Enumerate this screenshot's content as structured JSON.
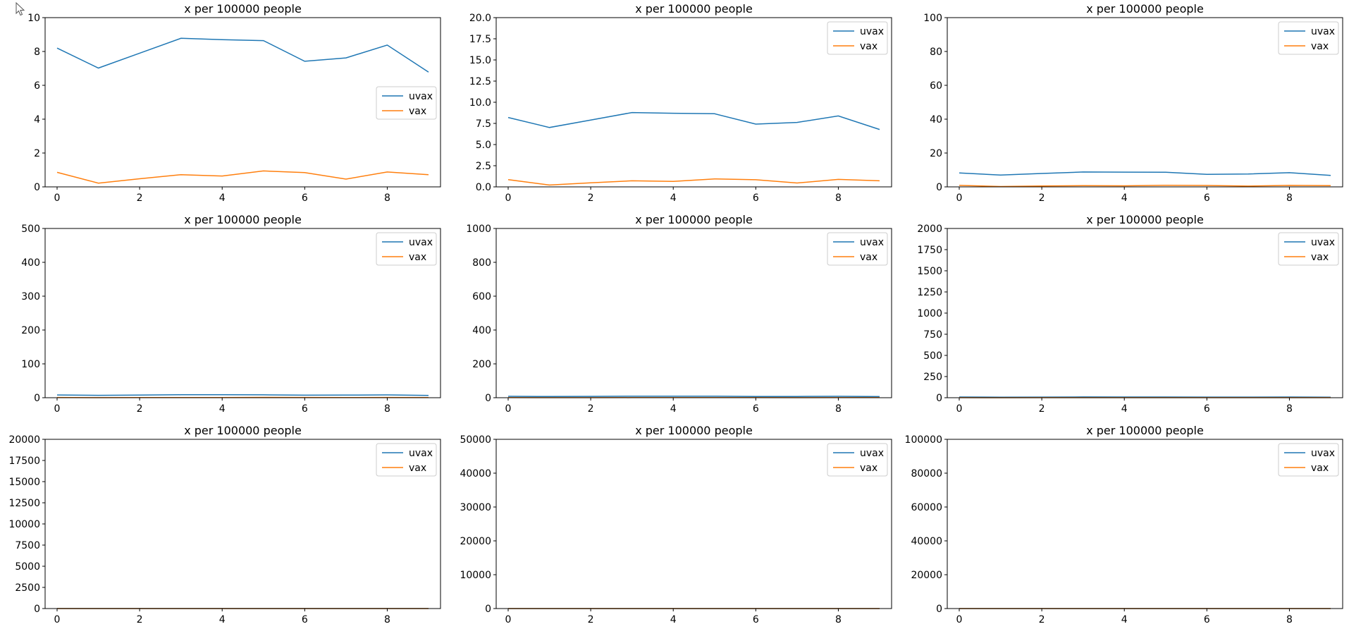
{
  "figure": {
    "colors": {
      "uvax": "#1f77b4",
      "vax": "#ff7f0e",
      "axes": "#000000",
      "legend_border": "#cccccc"
    }
  },
  "chart_data": [
    {
      "type": "line",
      "title": "x per 100000 people",
      "x": [
        0,
        1,
        2,
        3,
        4,
        5,
        6,
        7,
        8,
        9
      ],
      "ylim": [
        0,
        10
      ],
      "yticks": [
        0,
        2,
        4,
        6,
        8,
        10
      ],
      "ytick_labels": [
        "0",
        "2",
        "4",
        "6",
        "8",
        "10"
      ],
      "xticks": [
        0,
        2,
        4,
        6,
        8
      ],
      "xtick_labels": [
        "0",
        "2",
        "4",
        "6",
        "8"
      ],
      "legend": "center-right",
      "series": [
        {
          "name": "uvax",
          "values": [
            8.2,
            7.02,
            7.9,
            8.78,
            8.7,
            8.64,
            7.42,
            7.62,
            8.38,
            6.78
          ]
        },
        {
          "name": "vax",
          "values": [
            0.86,
            0.22,
            0.48,
            0.72,
            0.64,
            0.94,
            0.84,
            0.46,
            0.88,
            0.72
          ]
        }
      ]
    },
    {
      "type": "line",
      "title": "x per 100000 people",
      "x": [
        0,
        1,
        2,
        3,
        4,
        5,
        6,
        7,
        8,
        9
      ],
      "ylim": [
        0,
        20
      ],
      "yticks": [
        0,
        2.5,
        5,
        7.5,
        10,
        12.5,
        15,
        17.5,
        20
      ],
      "ytick_labels": [
        "0.0",
        "2.5",
        "5.0",
        "7.5",
        "10.0",
        "12.5",
        "15.0",
        "17.5",
        "20.0"
      ],
      "xticks": [
        0,
        2,
        4,
        6,
        8
      ],
      "xtick_labels": [
        "0",
        "2",
        "4",
        "6",
        "8"
      ],
      "legend": "top-right",
      "series": [
        {
          "name": "uvax",
          "values": [
            8.2,
            7.02,
            7.9,
            8.78,
            8.7,
            8.64,
            7.42,
            7.62,
            8.38,
            6.78
          ]
        },
        {
          "name": "vax",
          "values": [
            0.86,
            0.22,
            0.48,
            0.72,
            0.64,
            0.94,
            0.84,
            0.46,
            0.88,
            0.72
          ]
        }
      ]
    },
    {
      "type": "line",
      "title": "x per 100000 people",
      "x": [
        0,
        1,
        2,
        3,
        4,
        5,
        6,
        7,
        8,
        9
      ],
      "ylim": [
        0,
        100
      ],
      "yticks": [
        0,
        20,
        40,
        60,
        80,
        100
      ],
      "ytick_labels": [
        "0",
        "20",
        "40",
        "60",
        "80",
        "100"
      ],
      "xticks": [
        0,
        2,
        4,
        6,
        8
      ],
      "xtick_labels": [
        "0",
        "2",
        "4",
        "6",
        "8"
      ],
      "legend": "top-right",
      "series": [
        {
          "name": "uvax",
          "values": [
            8.2,
            7.02,
            7.9,
            8.78,
            8.7,
            8.64,
            7.42,
            7.62,
            8.38,
            6.78
          ]
        },
        {
          "name": "vax",
          "values": [
            0.86,
            0.22,
            0.48,
            0.72,
            0.64,
            0.94,
            0.84,
            0.46,
            0.88,
            0.72
          ]
        }
      ]
    },
    {
      "type": "line",
      "title": "x per 100000 people",
      "x": [
        0,
        1,
        2,
        3,
        4,
        5,
        6,
        7,
        8,
        9
      ],
      "ylim": [
        0,
        500
      ],
      "yticks": [
        0,
        100,
        200,
        300,
        400,
        500
      ],
      "ytick_labels": [
        "0",
        "100",
        "200",
        "300",
        "400",
        "500"
      ],
      "xticks": [
        0,
        2,
        4,
        6,
        8
      ],
      "xtick_labels": [
        "0",
        "2",
        "4",
        "6",
        "8"
      ],
      "legend": "top-right",
      "series": [
        {
          "name": "uvax",
          "values": [
            8.2,
            7.02,
            7.9,
            8.78,
            8.7,
            8.64,
            7.42,
            7.62,
            8.38,
            6.78
          ]
        },
        {
          "name": "vax",
          "values": [
            0.86,
            0.22,
            0.48,
            0.72,
            0.64,
            0.94,
            0.84,
            0.46,
            0.88,
            0.72
          ]
        }
      ]
    },
    {
      "type": "line",
      "title": "x per 100000 people",
      "x": [
        0,
        1,
        2,
        3,
        4,
        5,
        6,
        7,
        8,
        9
      ],
      "ylim": [
        0,
        1000
      ],
      "yticks": [
        0,
        200,
        400,
        600,
        800,
        1000
      ],
      "ytick_labels": [
        "0",
        "200",
        "400",
        "600",
        "800",
        "1000"
      ],
      "xticks": [
        0,
        2,
        4,
        6,
        8
      ],
      "xtick_labels": [
        "0",
        "2",
        "4",
        "6",
        "8"
      ],
      "legend": "top-right",
      "series": [
        {
          "name": "uvax",
          "values": [
            8.2,
            7.02,
            7.9,
            8.78,
            8.7,
            8.64,
            7.42,
            7.62,
            8.38,
            6.78
          ]
        },
        {
          "name": "vax",
          "values": [
            0.86,
            0.22,
            0.48,
            0.72,
            0.64,
            0.94,
            0.84,
            0.46,
            0.88,
            0.72
          ]
        }
      ]
    },
    {
      "type": "line",
      "title": "x per 100000 people",
      "x": [
        0,
        1,
        2,
        3,
        4,
        5,
        6,
        7,
        8,
        9
      ],
      "ylim": [
        0,
        2000
      ],
      "yticks": [
        0,
        250,
        500,
        750,
        1000,
        1250,
        1500,
        1750,
        2000
      ],
      "ytick_labels": [
        "0",
        "250",
        "500",
        "750",
        "1000",
        "1250",
        "1500",
        "1750",
        "2000"
      ],
      "xticks": [
        0,
        2,
        4,
        6,
        8
      ],
      "xtick_labels": [
        "0",
        "2",
        "4",
        "6",
        "8"
      ],
      "legend": "top-right",
      "series": [
        {
          "name": "uvax",
          "values": [
            8.2,
            7.02,
            7.9,
            8.78,
            8.7,
            8.64,
            7.42,
            7.62,
            8.38,
            6.78
          ]
        },
        {
          "name": "vax",
          "values": [
            0.86,
            0.22,
            0.48,
            0.72,
            0.64,
            0.94,
            0.84,
            0.46,
            0.88,
            0.72
          ]
        }
      ]
    },
    {
      "type": "line",
      "title": "x per 100000 people",
      "x": [
        0,
        1,
        2,
        3,
        4,
        5,
        6,
        7,
        8,
        9
      ],
      "ylim": [
        0,
        20000
      ],
      "yticks": [
        0,
        2500,
        5000,
        7500,
        10000,
        12500,
        15000,
        17500,
        20000
      ],
      "ytick_labels": [
        "0",
        "2500",
        "5000",
        "7500",
        "10000",
        "12500",
        "15000",
        "17500",
        "20000"
      ],
      "xticks": [
        0,
        2,
        4,
        6,
        8
      ],
      "xtick_labels": [
        "0",
        "2",
        "4",
        "6",
        "8"
      ],
      "legend": "top-right",
      "series": [
        {
          "name": "uvax",
          "values": [
            8.2,
            7.02,
            7.9,
            8.78,
            8.7,
            8.64,
            7.42,
            7.62,
            8.38,
            6.78
          ]
        },
        {
          "name": "vax",
          "values": [
            0.86,
            0.22,
            0.48,
            0.72,
            0.64,
            0.94,
            0.84,
            0.46,
            0.88,
            0.72
          ]
        }
      ]
    },
    {
      "type": "line",
      "title": "x per 100000 people",
      "x": [
        0,
        1,
        2,
        3,
        4,
        5,
        6,
        7,
        8,
        9
      ],
      "ylim": [
        0,
        50000
      ],
      "yticks": [
        0,
        10000,
        20000,
        30000,
        40000,
        50000
      ],
      "ytick_labels": [
        "0",
        "10000",
        "20000",
        "30000",
        "40000",
        "50000"
      ],
      "xticks": [
        0,
        2,
        4,
        6,
        8
      ],
      "xtick_labels": [
        "0",
        "2",
        "4",
        "6",
        "8"
      ],
      "legend": "top-right",
      "series": [
        {
          "name": "uvax",
          "values": [
            8.2,
            7.02,
            7.9,
            8.78,
            8.7,
            8.64,
            7.42,
            7.62,
            8.38,
            6.78
          ]
        },
        {
          "name": "vax",
          "values": [
            0.86,
            0.22,
            0.48,
            0.72,
            0.64,
            0.94,
            0.84,
            0.46,
            0.88,
            0.72
          ]
        }
      ]
    },
    {
      "type": "line",
      "title": "x per 100000 people",
      "x": [
        0,
        1,
        2,
        3,
        4,
        5,
        6,
        7,
        8,
        9
      ],
      "ylim": [
        0,
        100000
      ],
      "yticks": [
        0,
        20000,
        40000,
        60000,
        80000,
        100000
      ],
      "ytick_labels": [
        "0",
        "20000",
        "40000",
        "60000",
        "80000",
        "100000"
      ],
      "xticks": [
        0,
        2,
        4,
        6,
        8
      ],
      "xtick_labels": [
        "0",
        "2",
        "4",
        "6",
        "8"
      ],
      "legend": "top-right",
      "series": [
        {
          "name": "uvax",
          "values": [
            8.2,
            7.02,
            7.9,
            8.78,
            8.7,
            8.64,
            7.42,
            7.62,
            8.38,
            6.78
          ]
        },
        {
          "name": "vax",
          "values": [
            0.86,
            0.22,
            0.48,
            0.72,
            0.64,
            0.94,
            0.84,
            0.46,
            0.88,
            0.72
          ]
        }
      ]
    }
  ]
}
